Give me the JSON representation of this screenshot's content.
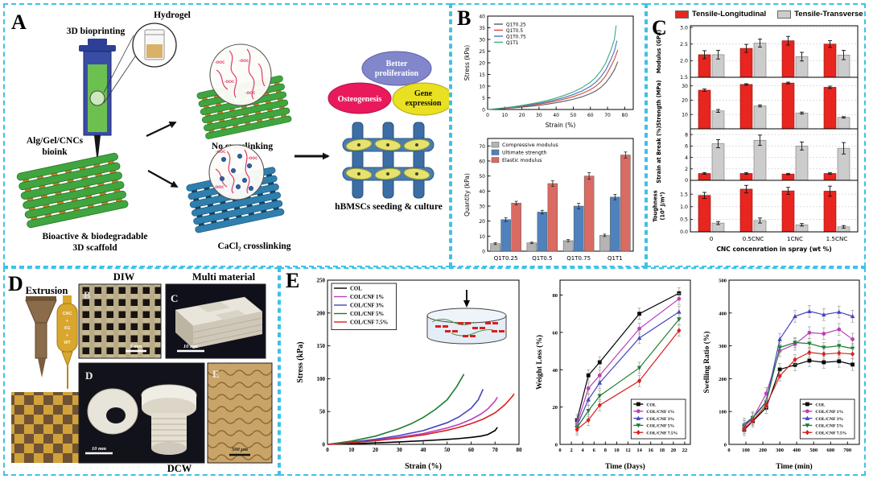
{
  "figure": {
    "background": "#ffffff",
    "panel_border_color": "#3ec1e6"
  },
  "panel_a": {
    "label": "A",
    "bioprinting": "3D bioprinting",
    "hydrogel": "Hydrogel",
    "bioink_line1": "Alg/Gel/CNCs",
    "bioink_line2": "bioink",
    "scaffold_line1": "Bioactive & biodegradable",
    "scaffold_line2": "3D scaffold",
    "no_crosslinking": "No crosslinking",
    "cacl2_crosslinking": "CaCl₂ crosslinking",
    "better_line1": "Better",
    "better_line2": "proliferation",
    "osteogenesis": "Osteogenesis",
    "gene_line1": "Gene",
    "gene_line2": "expression",
    "hbmscs": "hBMSCs seeding & culture",
    "ooc_label": "-OOC"
  },
  "panel_b": {
    "label": "B"
  },
  "panel_c": {
    "label": "C"
  },
  "panel_d": {
    "label": "D",
    "extrusion": "Extrusion",
    "diw": "DIW",
    "multi_material": "Multi material",
    "dcw": "DCW",
    "syringe_lines": [
      "CNC",
      "+",
      "XG",
      "+",
      "WT"
    ],
    "photo_b_letter": "B",
    "photo_c_letter": "C",
    "photo_d_letter": "D",
    "photo_e_letter": "E",
    "scale_b": "5 mm",
    "scale_c": "10 mm",
    "scale_d": "10 mm",
    "scale_e": "500 μm"
  },
  "panel_e": {
    "label": "E"
  },
  "chart_data": [
    {
      "id": "b_stress",
      "type": "line",
      "xlabel": "Strain (%)",
      "ylabel": "Stress (kPa)",
      "xlim": [
        0,
        85
      ],
      "ylim": [
        0,
        40
      ],
      "xticks": [
        0,
        10,
        20,
        30,
        40,
        50,
        60,
        70,
        80
      ],
      "yticks": [
        0,
        5,
        10,
        15,
        20,
        25,
        30,
        35,
        40
      ],
      "legend_pos": "top-left",
      "series": [
        {
          "name": "Q1T0.25",
          "color": "#5a5a5a",
          "x": [
            0,
            5,
            10,
            15,
            20,
            25,
            30,
            35,
            40,
            45,
            50,
            55,
            60,
            63,
            66,
            69,
            72,
            74,
            76
          ],
          "y": [
            0,
            0.2,
            0.45,
            0.7,
            1,
            1.35,
            1.8,
            2.3,
            2.9,
            3.6,
            4.4,
            5.4,
            6.8,
            7.9,
            9.4,
            11.5,
            14.5,
            17,
            20.5
          ]
        },
        {
          "name": "Q1T0.5",
          "color": "#d24b3a",
          "x": [
            0,
            5,
            10,
            15,
            20,
            25,
            30,
            35,
            40,
            45,
            50,
            55,
            60,
            63,
            66,
            69,
            72,
            74,
            76
          ],
          "y": [
            0,
            0.25,
            0.55,
            0.9,
            1.3,
            1.75,
            2.3,
            2.9,
            3.65,
            4.5,
            5.5,
            6.8,
            8.5,
            9.9,
            11.8,
            14.5,
            18.5,
            21.5,
            25.5
          ]
        },
        {
          "name": "Q1T0.75",
          "color": "#4472c4",
          "x": [
            0,
            5,
            10,
            15,
            20,
            25,
            30,
            35,
            40,
            45,
            50,
            55,
            60,
            63,
            66,
            69,
            72,
            74,
            75.5
          ],
          "y": [
            0,
            0.3,
            0.65,
            1.05,
            1.5,
            2.05,
            2.65,
            3.35,
            4.2,
            5.2,
            6.4,
            7.9,
            9.9,
            11.6,
            13.9,
            17,
            21.5,
            25,
            29.5
          ]
        },
        {
          "name": "Q1T1",
          "color": "#3aaa7a",
          "x": [
            0,
            5,
            10,
            15,
            20,
            25,
            30,
            35,
            40,
            45,
            50,
            55,
            60,
            63,
            66,
            69,
            72,
            74,
            75
          ],
          "y": [
            0,
            0.35,
            0.75,
            1.2,
            1.75,
            2.4,
            3.1,
            3.9,
            4.9,
            6.1,
            7.5,
            9.3,
            11.7,
            13.7,
            16.4,
            20,
            25.5,
            30,
            36
          ]
        }
      ]
    },
    {
      "id": "b_bars",
      "type": "bar",
      "ylabel": "Quantity (kPa)",
      "categories": [
        "Q1T0.25",
        "Q1T0.5",
        "Q1T0.75",
        "Q1T1"
      ],
      "ylim": [
        0,
        75
      ],
      "yticks": [
        0,
        10,
        20,
        30,
        40,
        50,
        60,
        70
      ],
      "series": [
        {
          "name": "Compressive modulus",
          "color": "#b4b4b4",
          "values": [
            5,
            5.5,
            7,
            10.5
          ],
          "errors": [
            0.6,
            0.5,
            0.7,
            0.8
          ]
        },
        {
          "name": "Ultimate strength",
          "color": "#4f81bd",
          "values": [
            21,
            26,
            30,
            36
          ],
          "errors": [
            1.2,
            1.2,
            1.8,
            1.8
          ]
        },
        {
          "name": "Elastic modulus",
          "color": "#d96b63",
          "values": [
            32,
            45,
            50,
            64
          ],
          "errors": [
            1.2,
            1.8,
            2.2,
            2
          ]
        }
      ]
    },
    {
      "id": "c_bars",
      "type": "grouped-bar-grid",
      "legend": [
        {
          "name": "Tensile-Longitudinal",
          "color": "#e8251f"
        },
        {
          "name": "Tensile-Transverse",
          "color": "#cccccc"
        }
      ],
      "categories": [
        "0",
        "0.5CNC",
        "1CNC",
        "1.5CNC"
      ],
      "xlabel": "CNC concenration in spray (wt %)",
      "subplots": [
        {
          "ylabel": "Modulus (GPa)",
          "ylim": [
            1.5,
            3.05
          ],
          "yticks": [
            1.5,
            2.0,
            2.5,
            3.0
          ],
          "dec": 1,
          "series": [
            {
              "values": [
                2.18,
                2.37,
                2.6,
                2.5
              ],
              "errors": [
                0.12,
                0.12,
                0.13,
                0.1
              ]
            },
            {
              "values": [
                2.18,
                2.53,
                2.12,
                2.17
              ],
              "errors": [
                0.13,
                0.12,
                0.13,
                0.14
              ]
            }
          ]
        },
        {
          "ylabel": "Strength (MPa)",
          "ylim": [
            0,
            36
          ],
          "yticks": [
            10,
            20,
            30
          ],
          "dec": 0,
          "series": [
            {
              "values": [
                27,
                31,
                32,
                29
              ],
              "errors": [
                0.8,
                0.5,
                0.6,
                0.8
              ]
            },
            {
              "values": [
                12.5,
                16,
                11,
                8
              ],
              "errors": [
                1,
                0.7,
                0.7,
                0.5
              ]
            }
          ]
        },
        {
          "ylabel": "Strain at Break (%)",
          "ylim": [
            0,
            9
          ],
          "yticks": [
            0,
            2,
            4,
            6,
            8
          ],
          "dec": 0,
          "series": [
            {
              "values": [
                1.2,
                1.2,
                1.1,
                1.2
              ],
              "errors": [
                0.15,
                0.15,
                0.12,
                0.12
              ]
            },
            {
              "values": [
                6.4,
                7.0,
                6.0,
                5.6
              ],
              "errors": [
                0.7,
                0.9,
                0.7,
                1.0
              ]
            }
          ]
        },
        {
          "ylabel": [
            "Toughness",
            "(10⁵ J/m³)"
          ],
          "ylim": [
            0,
            2.05
          ],
          "yticks": [
            0.0,
            0.5,
            1.0,
            1.5
          ],
          "dec": 1,
          "series": [
            {
              "values": [
                1.45,
                1.7,
                1.63,
                1.62
              ],
              "errors": [
                0.12,
                0.15,
                0.14,
                0.2
              ]
            },
            {
              "values": [
                0.35,
                0.45,
                0.28,
                0.2
              ],
              "errors": [
                0.06,
                0.1,
                0.05,
                0.05
              ]
            }
          ]
        }
      ]
    },
    {
      "id": "e_stress",
      "type": "line",
      "xlabel": "Strain (%)",
      "ylabel": "Stress (kPa)",
      "xlim": [
        0,
        80
      ],
      "ylim": [
        0,
        250
      ],
      "xticks": [
        0,
        10,
        20,
        30,
        40,
        50,
        60,
        70,
        80
      ],
      "yticks": [
        0,
        50,
        100,
        150,
        200,
        250
      ],
      "legend_pos": "top-left",
      "series": [
        {
          "name": "COL",
          "color": "#000000",
          "x": [
            0,
            10,
            20,
            30,
            40,
            50,
            55,
            60,
            64,
            67,
            70,
            71
          ],
          "y": [
            0,
            1,
            2.3,
            3.8,
            5.5,
            7.6,
            8.9,
            10.6,
            12.5,
            15,
            21,
            26
          ]
        },
        {
          "name": "COL/CNF 1%",
          "color": "#bb3fbb",
          "x": [
            0,
            10,
            20,
            30,
            40,
            50,
            55,
            60,
            64,
            67,
            70,
            71
          ],
          "y": [
            0,
            3,
            6.6,
            11,
            16.5,
            25,
            30.5,
            38,
            46,
            54,
            66,
            72
          ]
        },
        {
          "name": "COL/CNF 3%",
          "color": "#4545c0",
          "x": [
            0,
            10,
            20,
            30,
            40,
            50,
            55,
            60,
            63,
            65
          ],
          "y": [
            0,
            3.5,
            7.8,
            13.5,
            21,
            33,
            42,
            55,
            68,
            84
          ]
        },
        {
          "name": "COL/CNF 5%",
          "color": "#1e7d32",
          "x": [
            0,
            10,
            20,
            30,
            35,
            40,
            45,
            50,
            54,
            57
          ],
          "y": [
            0,
            5,
            12.5,
            24,
            31.5,
            41,
            53,
            68,
            88,
            107
          ]
        },
        {
          "name": "COL/CNF 7.5%",
          "color": "#d92020",
          "x": [
            0,
            10,
            20,
            30,
            40,
            50,
            55,
            60,
            65,
            70,
            74,
            77,
            78
          ],
          "y": [
            0,
            2.5,
            5.5,
            9.5,
            14.5,
            21.5,
            26,
            31.5,
            38.5,
            48,
            60,
            72,
            77
          ]
        }
      ]
    },
    {
      "id": "e_weight",
      "type": "line",
      "xlabel": "Time (Days)",
      "ylabel": "Weight Loss (%)",
      "xlim": [
        0,
        23
      ],
      "ylim": [
        0,
        88
      ],
      "xticks": [
        0,
        2,
        4,
        6,
        8,
        10,
        12,
        14,
        16,
        18,
        20,
        22
      ],
      "yticks": [
        0,
        20,
        40,
        60,
        80
      ],
      "legend_pos": "bottom-right",
      "x": [
        3,
        5,
        7,
        14,
        21
      ],
      "series": [
        {
          "name": "COL",
          "color": "#000000",
          "marker": "square",
          "err": 3,
          "y": [
            13,
            37,
            44,
            70,
            81
          ]
        },
        {
          "name": "COL/CNF 1%",
          "color": "#bb3fbb",
          "marker": "circle",
          "err": 3,
          "y": [
            11,
            30,
            37,
            62,
            78
          ]
        },
        {
          "name": "COL/CNF 3%",
          "color": "#4545c0",
          "marker": "triangle",
          "err": 3,
          "y": [
            10,
            24,
            33,
            57,
            71
          ]
        },
        {
          "name": "COL/CNF 5%",
          "color": "#1e7d32",
          "marker": "tridown",
          "err": 3,
          "y": [
            9,
            18,
            26,
            41,
            67
          ]
        },
        {
          "name": "COL/CNF 7.5%",
          "color": "#d92020",
          "marker": "diamond",
          "err": 3,
          "y": [
            8,
            13,
            21,
            34,
            61
          ]
        }
      ]
    },
    {
      "id": "e_swell",
      "type": "line",
      "xlabel": "Time (min)",
      "ylabel": "Swelling Ratio (%)",
      "xlim": [
        0,
        770
      ],
      "ylim": [
        0,
        500
      ],
      "xticks": [
        0,
        100,
        200,
        300,
        400,
        500,
        600,
        700
      ],
      "yticks": [
        0,
        100,
        200,
        300,
        400,
        500
      ],
      "legend_pos": "bottom-right",
      "x": [
        90,
        140,
        220,
        300,
        390,
        475,
        560,
        650,
        730
      ],
      "series": [
        {
          "name": "COL",
          "color": "#000000",
          "marker": "square",
          "err": 18,
          "y": [
            45,
            70,
            112,
            228,
            242,
            255,
            250,
            253,
            243
          ]
        },
        {
          "name": "COL/CNF 1%",
          "color": "#bb3fbb",
          "marker": "circle",
          "err": 18,
          "y": [
            55,
            78,
            155,
            285,
            305,
            340,
            337,
            350,
            320
          ]
        },
        {
          "name": "COL/CNF 3%",
          "color": "#4545c0",
          "marker": "triangle",
          "err": 18,
          "y": [
            62,
            82,
            130,
            320,
            390,
            405,
            395,
            403,
            390
          ]
        },
        {
          "name": "COL/CNF 5%",
          "color": "#1e7d32",
          "marker": "tridown",
          "err": 15,
          "y": [
            58,
            80,
            128,
            295,
            310,
            307,
            295,
            300,
            292
          ]
        },
        {
          "name": "COL/CNF 7.5%",
          "color": "#d92020",
          "marker": "diamond",
          "err": 15,
          "y": [
            48,
            72,
            120,
            208,
            258,
            280,
            275,
            278,
            275
          ]
        }
      ]
    }
  ]
}
